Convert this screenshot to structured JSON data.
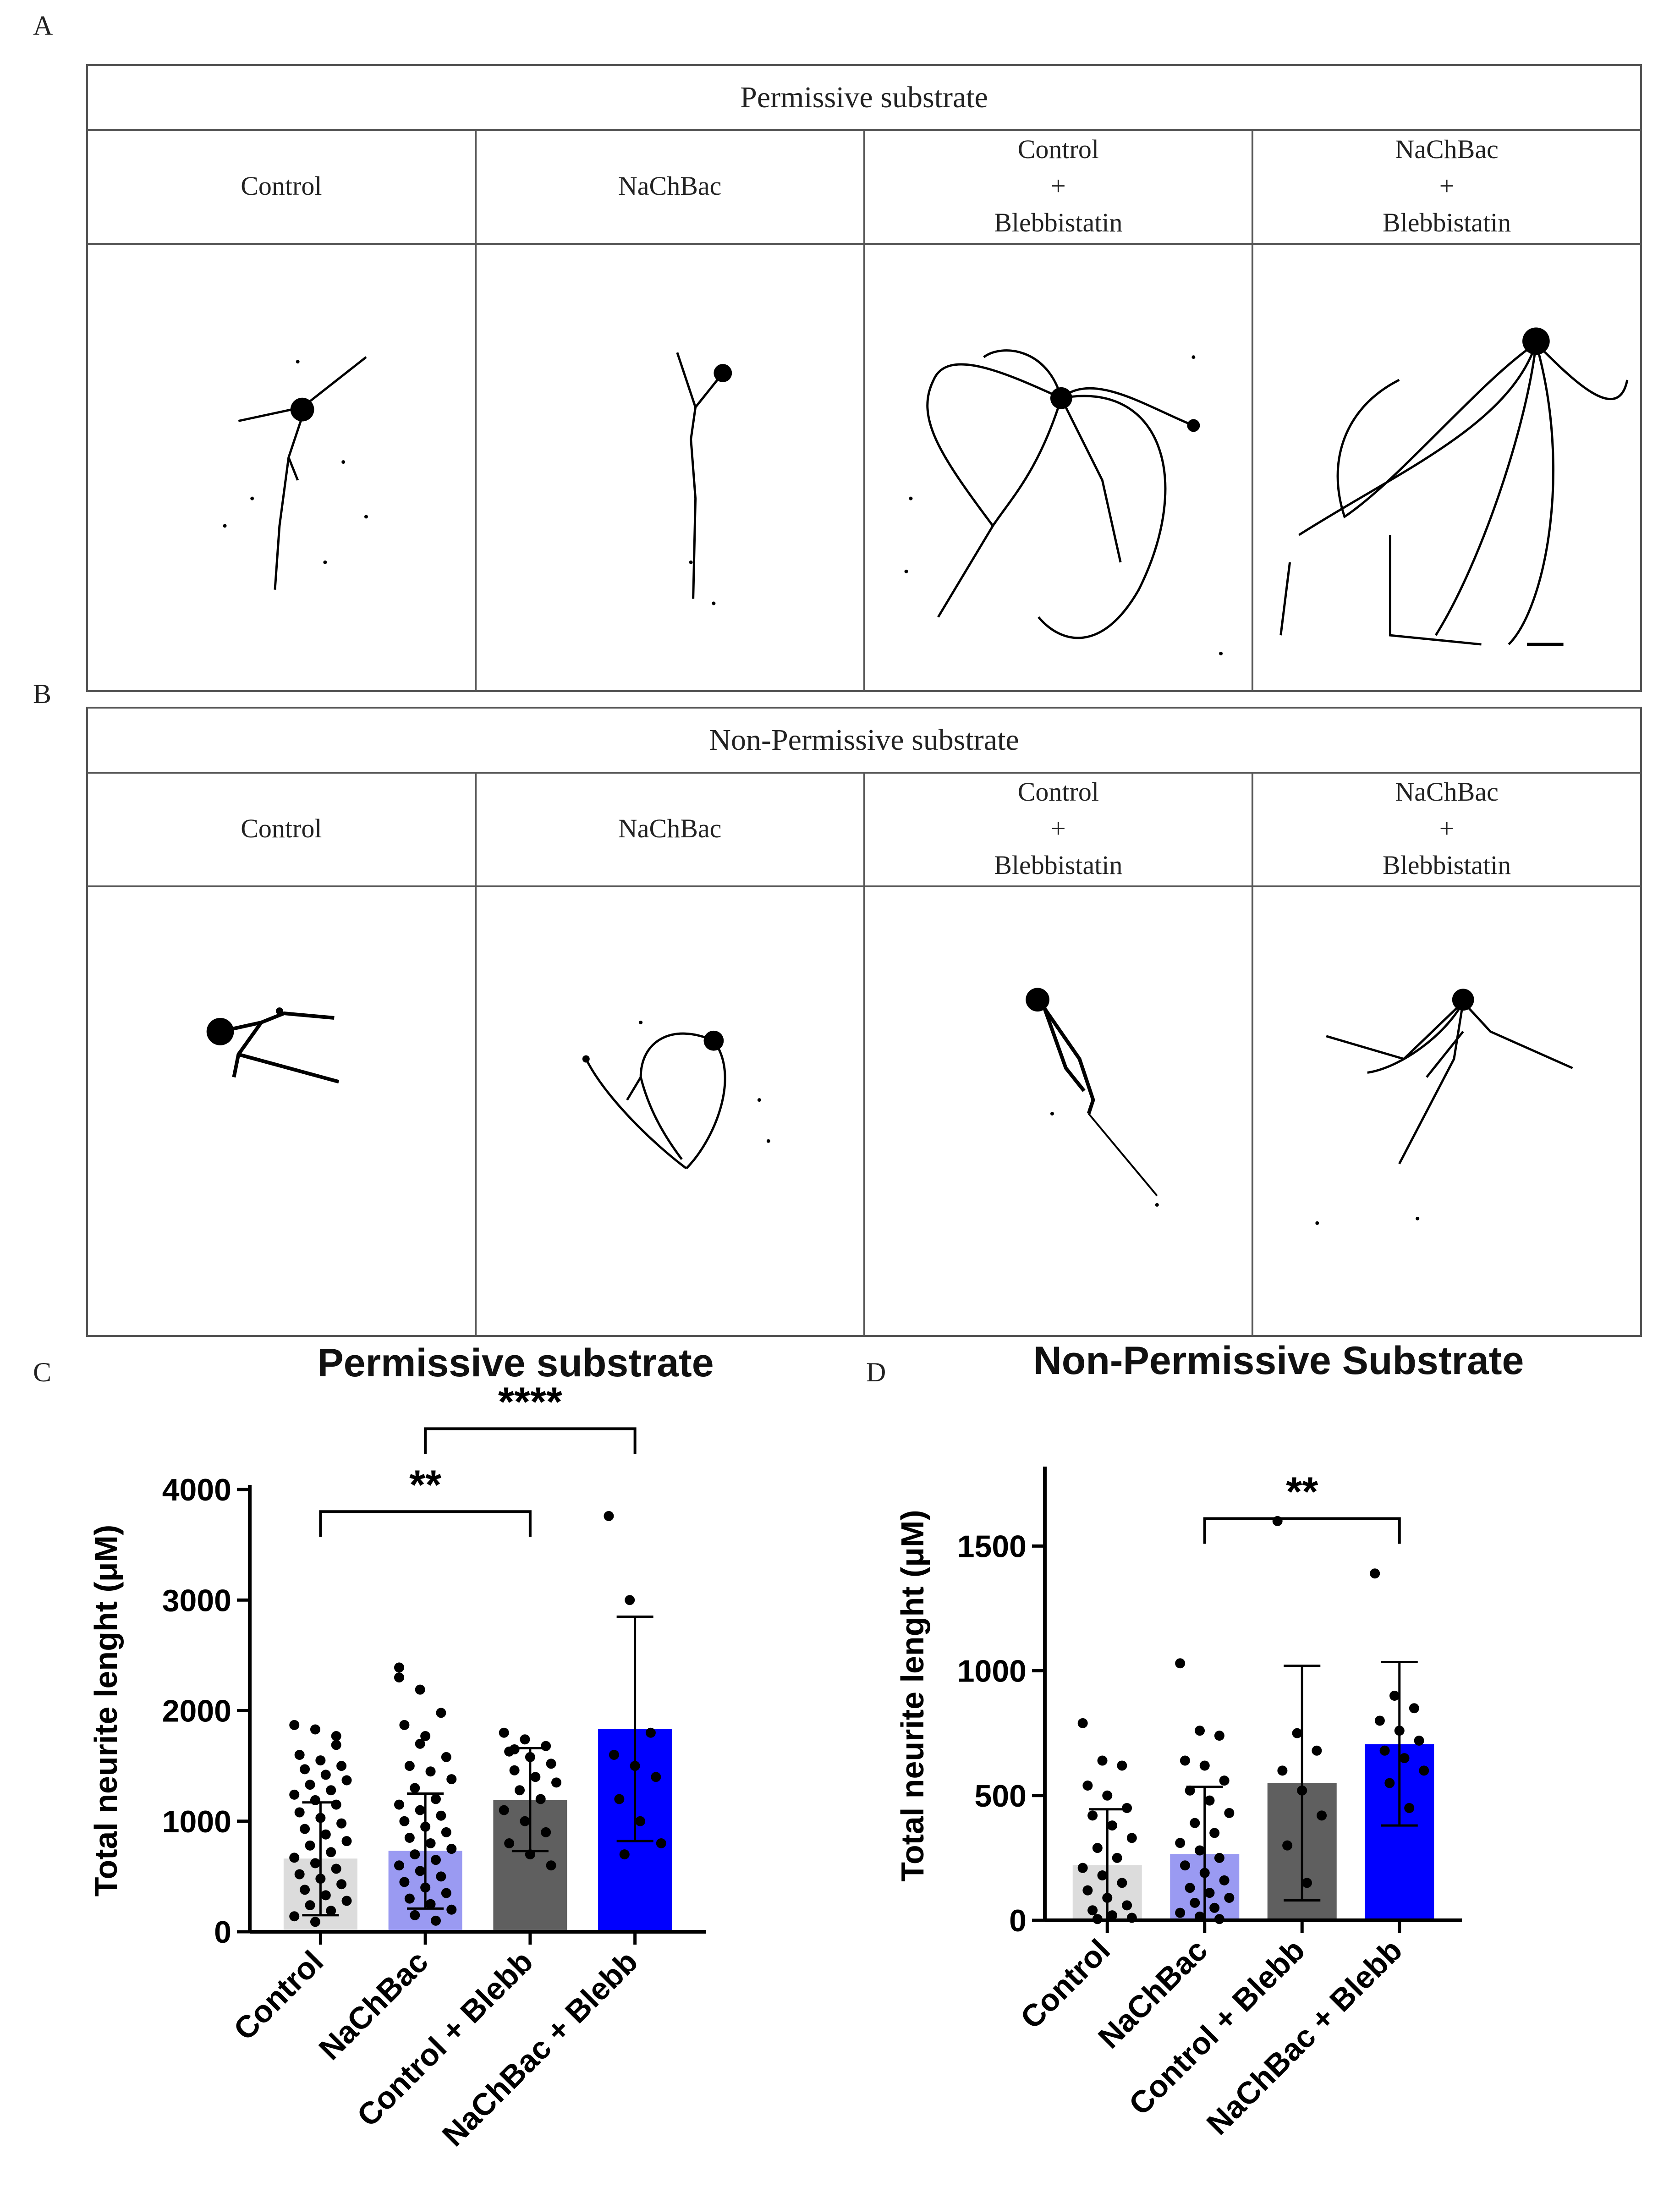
{
  "panel_labels": {
    "a": "A",
    "b": "B",
    "c": "C",
    "d": "D"
  },
  "panel_a": {
    "title": "Permissive substrate",
    "conditions": [
      {
        "lines": [
          "Control"
        ]
      },
      {
        "lines": [
          "NaChBac"
        ]
      },
      {
        "lines": [
          "Control",
          "+",
          "Blebbistatin"
        ]
      },
      {
        "lines": [
          "NaChBac",
          "+",
          "Blebbistatin"
        ]
      }
    ],
    "image_icons": [
      "neuron-trace-control",
      "neuron-trace-nachbac",
      "neuron-trace-control-blebb",
      "neuron-trace-nachbac-blebb"
    ]
  },
  "panel_b": {
    "title": "Non-Permissive substrate",
    "conditions": [
      {
        "lines": [
          "Control"
        ]
      },
      {
        "lines": [
          "NaChBac"
        ]
      },
      {
        "lines": [
          "Control",
          "+",
          "Blebbistatin"
        ]
      },
      {
        "lines": [
          "NaChBac",
          "+",
          "Blebbistatin"
        ]
      }
    ],
    "image_icons": [
      "neuron-trace-control",
      "neuron-trace-nachbac",
      "neuron-trace-control-blebb",
      "neuron-trace-nachbac-blebb"
    ]
  },
  "chart_data": [
    {
      "type": "bar",
      "title": "Permissive substrate",
      "xlabel": "",
      "ylabel": "Total neurite lenght (μM)",
      "categories": [
        "Control",
        "NaChBac",
        "Control + Blebb",
        "NaChBac + Blebb"
      ],
      "values": [
        660,
        730,
        1190,
        1830
      ],
      "error_upper": [
        1170,
        1250,
        1660,
        2850
      ],
      "error_lower": [
        150,
        210,
        730,
        820
      ],
      "colors": [
        "#dcdcdc",
        "#9a9af2",
        "#5f5f5f",
        "#0000ff"
      ],
      "ylim": [
        0,
        4000
      ],
      "yticks": [
        0,
        1000,
        2000,
        3000,
        4000
      ],
      "points": [
        [
          1870,
          1830,
          1690,
          1600,
          1550,
          1500,
          1470,
          1420,
          1370,
          1330,
          1280,
          1240,
          1190,
          1150,
          1080,
          1030,
          980,
          930,
          880,
          820,
          780,
          720,
          670,
          620,
          570,
          520,
          480,
          430,
          380,
          330,
          280,
          240,
          190,
          140,
          90,
          1770
        ],
        [
          2390,
          2190,
          1980,
          1870,
          1770,
          1580,
          1500,
          1450,
          1380,
          1300,
          1200,
          1150,
          1100,
          1050,
          1000,
          950,
          900,
          850,
          800,
          750,
          700,
          650,
          600,
          550,
          500,
          450,
          400,
          350,
          300,
          250,
          200,
          150,
          100,
          2300,
          1700
        ],
        [
          1800,
          1740,
          1680,
          1630,
          1580,
          1520,
          1460,
          1400,
          1350,
          1280,
          1200,
          1100,
          1000,
          900,
          800,
          700,
          600,
          1650
        ],
        [
          3760,
          3000,
          1800,
          1600,
          1500,
          1400,
          1200,
          1000,
          800,
          700
        ]
      ],
      "significance": [
        {
          "from": 0,
          "to": 2,
          "label": "**",
          "y": 3800
        },
        {
          "from": 1,
          "to": 3,
          "label": "****",
          "y": 4550
        }
      ]
    },
    {
      "type": "bar",
      "title": "Non-Permissive Substrate",
      "xlabel": "",
      "ylabel": "Total neurite lenght (μM)",
      "categories": [
        "Control",
        "NaChBac",
        "Control + Blebb",
        "NaChBac + Blebb"
      ],
      "values": [
        220,
        265,
        550,
        705
      ],
      "error_upper": [
        445,
        535,
        1020,
        1035
      ],
      "error_lower": [
        0,
        0,
        80,
        380
      ],
      "colors": [
        "#dcdcdc",
        "#9a9af2",
        "#5f5f5f",
        "#0000ff"
      ],
      "ylim": [
        0,
        1800
      ],
      "yticks": [
        0,
        500,
        1000,
        1500
      ],
      "points": [
        [
          790,
          640,
          620,
          540,
          500,
          450,
          420,
          380,
          330,
          290,
          250,
          210,
          180,
          150,
          120,
          90,
          60,
          40,
          20,
          10,
          5
        ],
        [
          1030,
          760,
          740,
          640,
          620,
          560,
          520,
          480,
          430,
          390,
          350,
          310,
          280,
          250,
          220,
          190,
          160,
          130,
          110,
          90,
          70,
          50,
          30,
          15,
          5
        ],
        [
          1600,
          750,
          680,
          600,
          520,
          420,
          300,
          150
        ],
        [
          1390,
          900,
          850,
          800,
          760,
          720,
          680,
          650,
          600,
          550,
          450
        ]
      ],
      "significance": [
        {
          "from": 1,
          "to": 3,
          "label": "**",
          "y": 1610
        }
      ]
    }
  ]
}
